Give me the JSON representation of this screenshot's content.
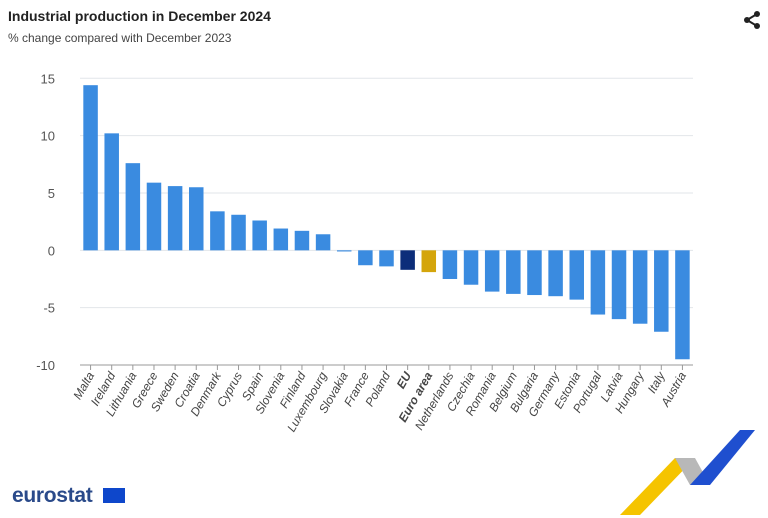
{
  "header": {
    "title": "Industrial production in December 2024",
    "subtitle": "% change compared with December 2023",
    "share_icon": "share-icon"
  },
  "logo": {
    "text": "eurostat"
  },
  "colors": {
    "country": "#3a8be0",
    "eu": "#0c2d7a",
    "euro_area": "#d4a50b",
    "grid": "#e2e6ea",
    "axis": "#999999"
  },
  "chart_data": {
    "type": "bar",
    "title": "Industrial production in December 2024",
    "subtitle": "% change compared with December 2023",
    "xlabel": "",
    "ylabel": "",
    "ylim": [
      -10,
      15
    ],
    "yticks": [
      -10,
      -5,
      0,
      5,
      10,
      15
    ],
    "grid": true,
    "categories": [
      "Malta",
      "Ireland",
      "Lithuania",
      "Greece",
      "Sweden",
      "Croatia",
      "Denmark",
      "Cyprus",
      "Spain",
      "Slovenia",
      "Finland",
      "Luxembourg",
      "Slovakia",
      "France",
      "Poland",
      "EU",
      "Euro area",
      "Netherlands",
      "Czechia",
      "Romania",
      "Belgium",
      "Bulgaria",
      "Germany",
      "Estonia",
      "Portugal",
      "Latvia",
      "Hungary",
      "Italy",
      "Austria"
    ],
    "values": [
      14.4,
      10.2,
      7.6,
      5.9,
      5.6,
      5.5,
      3.4,
      3.1,
      2.6,
      1.9,
      1.7,
      1.4,
      -0.1,
      -1.3,
      -1.4,
      -1.7,
      -1.9,
      -2.5,
      -3.0,
      -3.6,
      -3.8,
      -3.9,
      -4.0,
      -4.3,
      -5.6,
      -6.0,
      -6.4,
      -7.1,
      -9.5
    ],
    "highlight": {
      "EU": "#0c2d7a",
      "Euro area": "#d4a50b"
    }
  }
}
